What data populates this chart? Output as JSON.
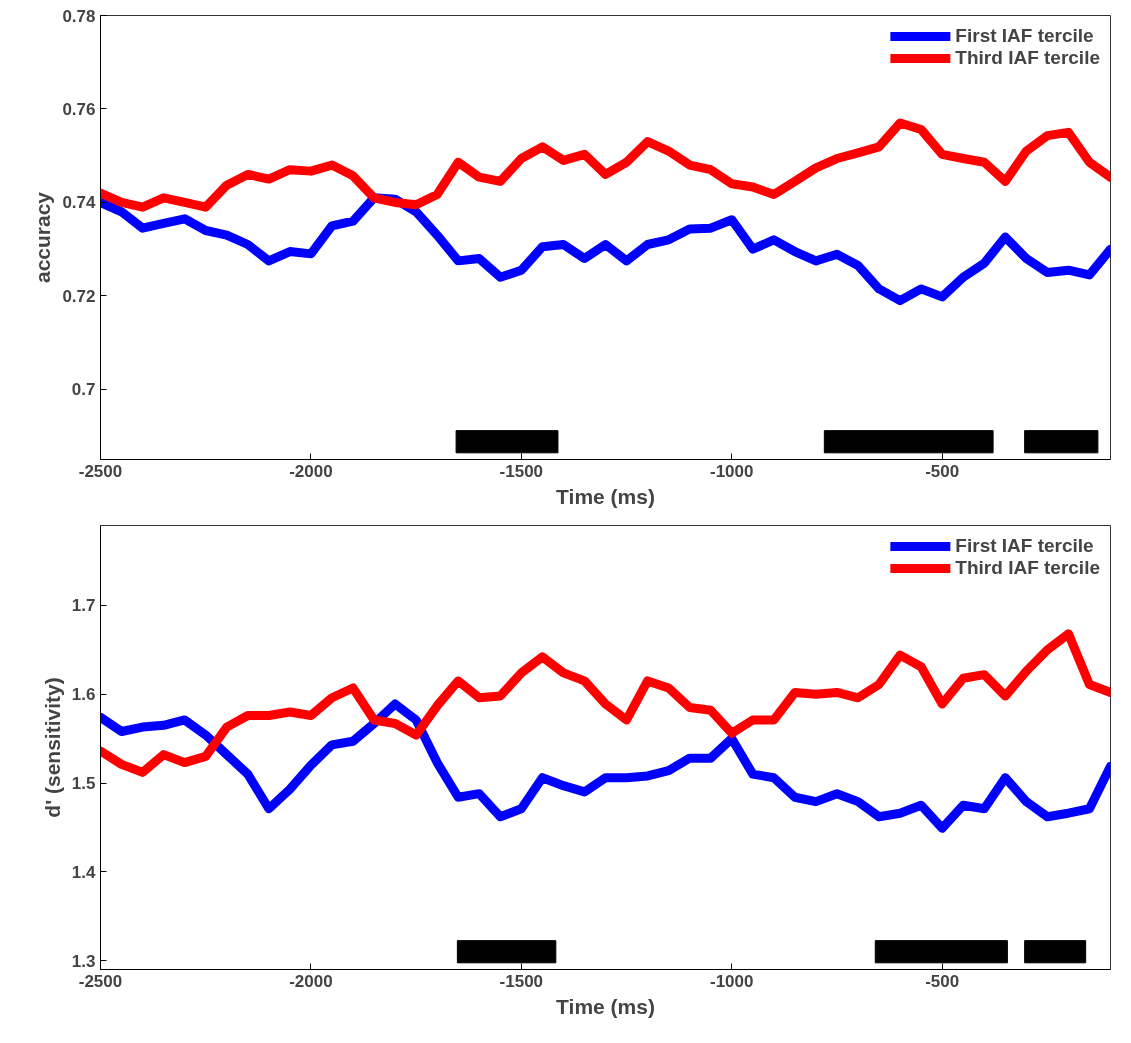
{
  "chart_data": [
    {
      "type": "line",
      "xlabel": "Time (ms)",
      "ylabel": "accuracy",
      "xlim": [
        -2500,
        -100
      ],
      "ylim": [
        0.685,
        0.78
      ],
      "xticks": [
        -2500,
        -2000,
        -1500,
        -1000,
        -500
      ],
      "yticks": [
        0.7,
        0.72,
        0.74,
        0.76,
        0.78
      ],
      "grid": false,
      "legend": "top right",
      "line_style": "solid",
      "marker": "none",
      "x": [
        -2500,
        -2450,
        -2400,
        -2350,
        -2300,
        -2250,
        -2200,
        -2150,
        -2100,
        -2050,
        -2000,
        -1950,
        -1900,
        -1850,
        -1800,
        -1750,
        -1700,
        -1650,
        -1600,
        -1550,
        -1500,
        -1450,
        -1400,
        -1350,
        -1300,
        -1250,
        -1200,
        -1150,
        -1100,
        -1050,
        -1000,
        -950,
        -900,
        -850,
        -800,
        -750,
        -700,
        -650,
        -600,
        -550,
        -500,
        -450,
        -400,
        -350,
        -300,
        -250,
        -200,
        -150,
        -100
      ],
      "series": [
        {
          "name": "First IAF tercile",
          "color": "#0000ff",
          "values": [
            0.74,
            0.738,
            0.7345,
            0.7355,
            0.7365,
            0.734,
            0.733,
            0.731,
            0.7275,
            0.7295,
            0.729,
            0.735,
            0.736,
            0.741,
            0.7407,
            0.738,
            0.733,
            0.7275,
            0.728,
            0.724,
            0.7255,
            0.7305,
            0.731,
            0.728,
            0.731,
            0.7275,
            0.731,
            0.732,
            0.7343,
            0.7345,
            0.7363,
            0.73,
            0.732,
            0.7295,
            0.7275,
            0.7289,
            0.7265,
            0.7215,
            0.719,
            0.7215,
            0.7198,
            0.724,
            0.727,
            0.7326,
            0.728,
            0.725,
            0.7255,
            0.7245,
            0.73
          ]
        },
        {
          "name": "Third IAF tercile",
          "color": "#ff0000",
          "values": [
            0.742,
            0.74,
            0.739,
            0.741,
            0.74,
            0.739,
            0.7437,
            0.746,
            0.745,
            0.747,
            0.7467,
            0.748,
            0.7457,
            0.741,
            0.74,
            0.7395,
            0.7417,
            0.7486,
            0.7454,
            0.7445,
            0.7494,
            0.7519,
            0.749,
            0.7503,
            0.746,
            0.7486,
            0.753,
            0.751,
            0.748,
            0.747,
            0.744,
            0.7433,
            0.7417,
            0.7445,
            0.7474,
            0.7494,
            0.7506,
            0.7519,
            0.757,
            0.7556,
            0.7503,
            0.7494,
            0.7486,
            0.7445,
            0.751,
            0.7543,
            0.755,
            0.7486,
            0.7454
          ]
        }
      ],
      "bands": [
        {
          "axis": "x",
          "from": -1655,
          "to": -1413,
          "color": "#000000"
        },
        {
          "axis": "x",
          "from": -780,
          "to": -379,
          "color": "#000000"
        },
        {
          "axis": "x",
          "from": -304,
          "to": -130,
          "color": "#000000"
        }
      ]
    },
    {
      "type": "line",
      "xlabel": "Time (ms)",
      "ylabel": "d' (sensitivity)",
      "xlim": [
        -2500,
        -100
      ],
      "ylim": [
        1.29,
        1.79
      ],
      "xticks": [
        -2500,
        -2000,
        -1500,
        -1000,
        -500
      ],
      "yticks": [
        1.3,
        1.4,
        1.5,
        1.6,
        1.7
      ],
      "grid": false,
      "legend": "top right",
      "line_style": "solid",
      "marker": "none",
      "x": [
        -2500,
        -2450,
        -2400,
        -2350,
        -2300,
        -2250,
        -2200,
        -2150,
        -2100,
        -2050,
        -2000,
        -1950,
        -1900,
        -1850,
        -1800,
        -1750,
        -1700,
        -1650,
        -1600,
        -1550,
        -1500,
        -1450,
        -1400,
        -1350,
        -1300,
        -1250,
        -1200,
        -1150,
        -1100,
        -1050,
        -1000,
        -950,
        -900,
        -850,
        -800,
        -750,
        -700,
        -650,
        -600,
        -550,
        -500,
        -450,
        -400,
        -350,
        -300,
        -250,
        -200,
        -150,
        -100
      ],
      "series": [
        {
          "name": "First IAF tercile",
          "color": "#0000ff",
          "values": [
            1.574,
            1.558,
            1.563,
            1.565,
            1.571,
            1.554,
            1.532,
            1.51,
            1.471,
            1.493,
            1.52,
            1.543,
            1.547,
            1.567,
            1.589,
            1.571,
            1.523,
            1.484,
            1.488,
            1.462,
            1.471,
            1.506,
            1.497,
            1.49,
            1.506,
            1.506,
            1.508,
            1.514,
            1.528,
            1.528,
            1.55,
            1.51,
            1.506,
            1.484,
            1.479,
            1.488,
            1.479,
            1.462,
            1.466,
            1.475,
            1.449,
            1.475,
            1.471,
            1.506,
            1.479,
            1.462,
            1.466,
            1.471,
            1.519
          ]
        },
        {
          "name": "Third IAF tercile",
          "color": "#ff0000",
          "values": [
            1.536,
            1.521,
            1.512,
            1.532,
            1.523,
            1.53,
            1.563,
            1.576,
            1.576,
            1.58,
            1.576,
            1.596,
            1.607,
            1.571,
            1.567,
            1.554,
            1.587,
            1.615,
            1.596,
            1.598,
            1.624,
            1.642,
            1.624,
            1.615,
            1.589,
            1.571,
            1.615,
            1.607,
            1.585,
            1.582,
            1.556,
            1.571,
            1.571,
            1.602,
            1.6,
            1.602,
            1.596,
            1.611,
            1.644,
            1.631,
            1.589,
            1.618,
            1.622,
            1.598,
            1.626,
            1.65,
            1.668,
            1.611,
            1.602
          ]
        }
      ],
      "bands": [
        {
          "axis": "x",
          "from": -1652,
          "to": -1418,
          "color": "#000000"
        },
        {
          "axis": "x",
          "from": -659,
          "to": -345,
          "color": "#000000"
        },
        {
          "axis": "x",
          "from": -304,
          "to": -159,
          "color": "#000000"
        }
      ]
    }
  ]
}
